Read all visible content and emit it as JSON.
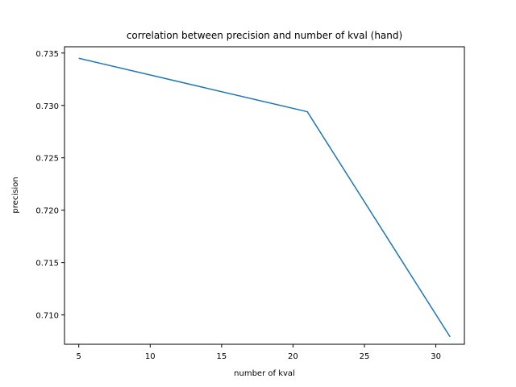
{
  "chart_data": {
    "type": "line",
    "title": "correlation between precision and number of kval (hand)",
    "xlabel": "number of kval",
    "ylabel": "precision",
    "xlim": [
      4.0,
      32.0
    ],
    "ylim": [
      0.7072,
      0.7356
    ],
    "xticks": [
      5,
      10,
      15,
      20,
      25,
      30
    ],
    "yticks": [
      0.71,
      0.715,
      0.72,
      0.725,
      0.73,
      0.735
    ],
    "ytick_labels": [
      "0.710",
      "0.715",
      "0.720",
      "0.725",
      "0.730",
      "0.735"
    ],
    "grid": false,
    "series": [
      {
        "color": "#1f77b4",
        "x": [
          5,
          21,
          31
        ],
        "y": [
          0.7345,
          0.7294,
          0.7079
        ]
      }
    ]
  }
}
